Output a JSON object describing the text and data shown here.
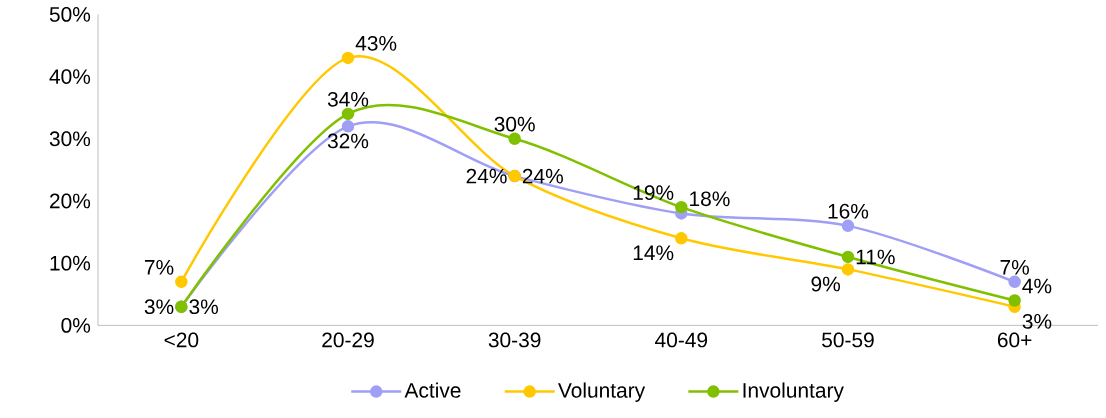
{
  "chart_data": {
    "type": "line",
    "categories": [
      "<20",
      "20-29",
      "30-39",
      "40-49",
      "50-59",
      "60+"
    ],
    "series": [
      {
        "name": "Active",
        "color": "#9f9ff5",
        "values": [
          3,
          32,
          24,
          18,
          16,
          7
        ],
        "value_labels": [
          "3%",
          "32%",
          "24%",
          "18%",
          "16%",
          "7%"
        ]
      },
      {
        "name": "Voluntary",
        "color": "#ffc800",
        "values": [
          7,
          43,
          24,
          14,
          9,
          3
        ],
        "value_labels": [
          "7%",
          "43%",
          "24%",
          "14%",
          "9%",
          "3%"
        ]
      },
      {
        "name": "Involuntary",
        "color": "#80c000",
        "values": [
          3,
          34,
          30,
          19,
          11,
          4
        ],
        "value_labels": [
          "3%",
          "34%",
          "30%",
          "19%",
          "11%",
          "4%"
        ]
      }
    ],
    "ylim": [
      0,
      50
    ],
    "yticks": [
      {
        "value": 0,
        "label": "0%"
      },
      {
        "value": 10,
        "label": "10%"
      },
      {
        "value": 20,
        "label": "20%"
      },
      {
        "value": 30,
        "label": "30%"
      },
      {
        "value": 40,
        "label": "40%"
      },
      {
        "value": 50,
        "label": "50%"
      }
    ],
    "grid": false,
    "legend": "bottom",
    "marker": "circle",
    "line_style": "solid"
  }
}
